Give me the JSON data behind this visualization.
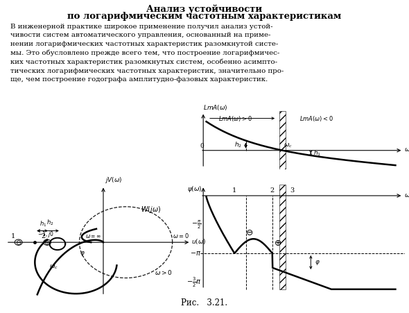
{
  "title_line1": "Анализ устойчивости",
  "title_line2": "по логарифмическим частотным характеристикам",
  "body_text": "В инженерной практике широкое применение получил анализ устой-\nчивости систем автоматического управления, основанный на приме-\nнении логарифмических частотных характеристик разомкнутой систе-\nмы. Это обусловлено прежде всего тем, что построение логарифмичес-\nких частотных характеристик разомкнутых систем, особенно асимпто-\nтических логарифмических частотных характеристик, значительно про-\nще, чем построение годографа амплитудно-фазовых характеристик.",
  "fig_caption": "Рис.   3.21.",
  "bg_color": "#ffffff",
  "text_color": "#000000"
}
